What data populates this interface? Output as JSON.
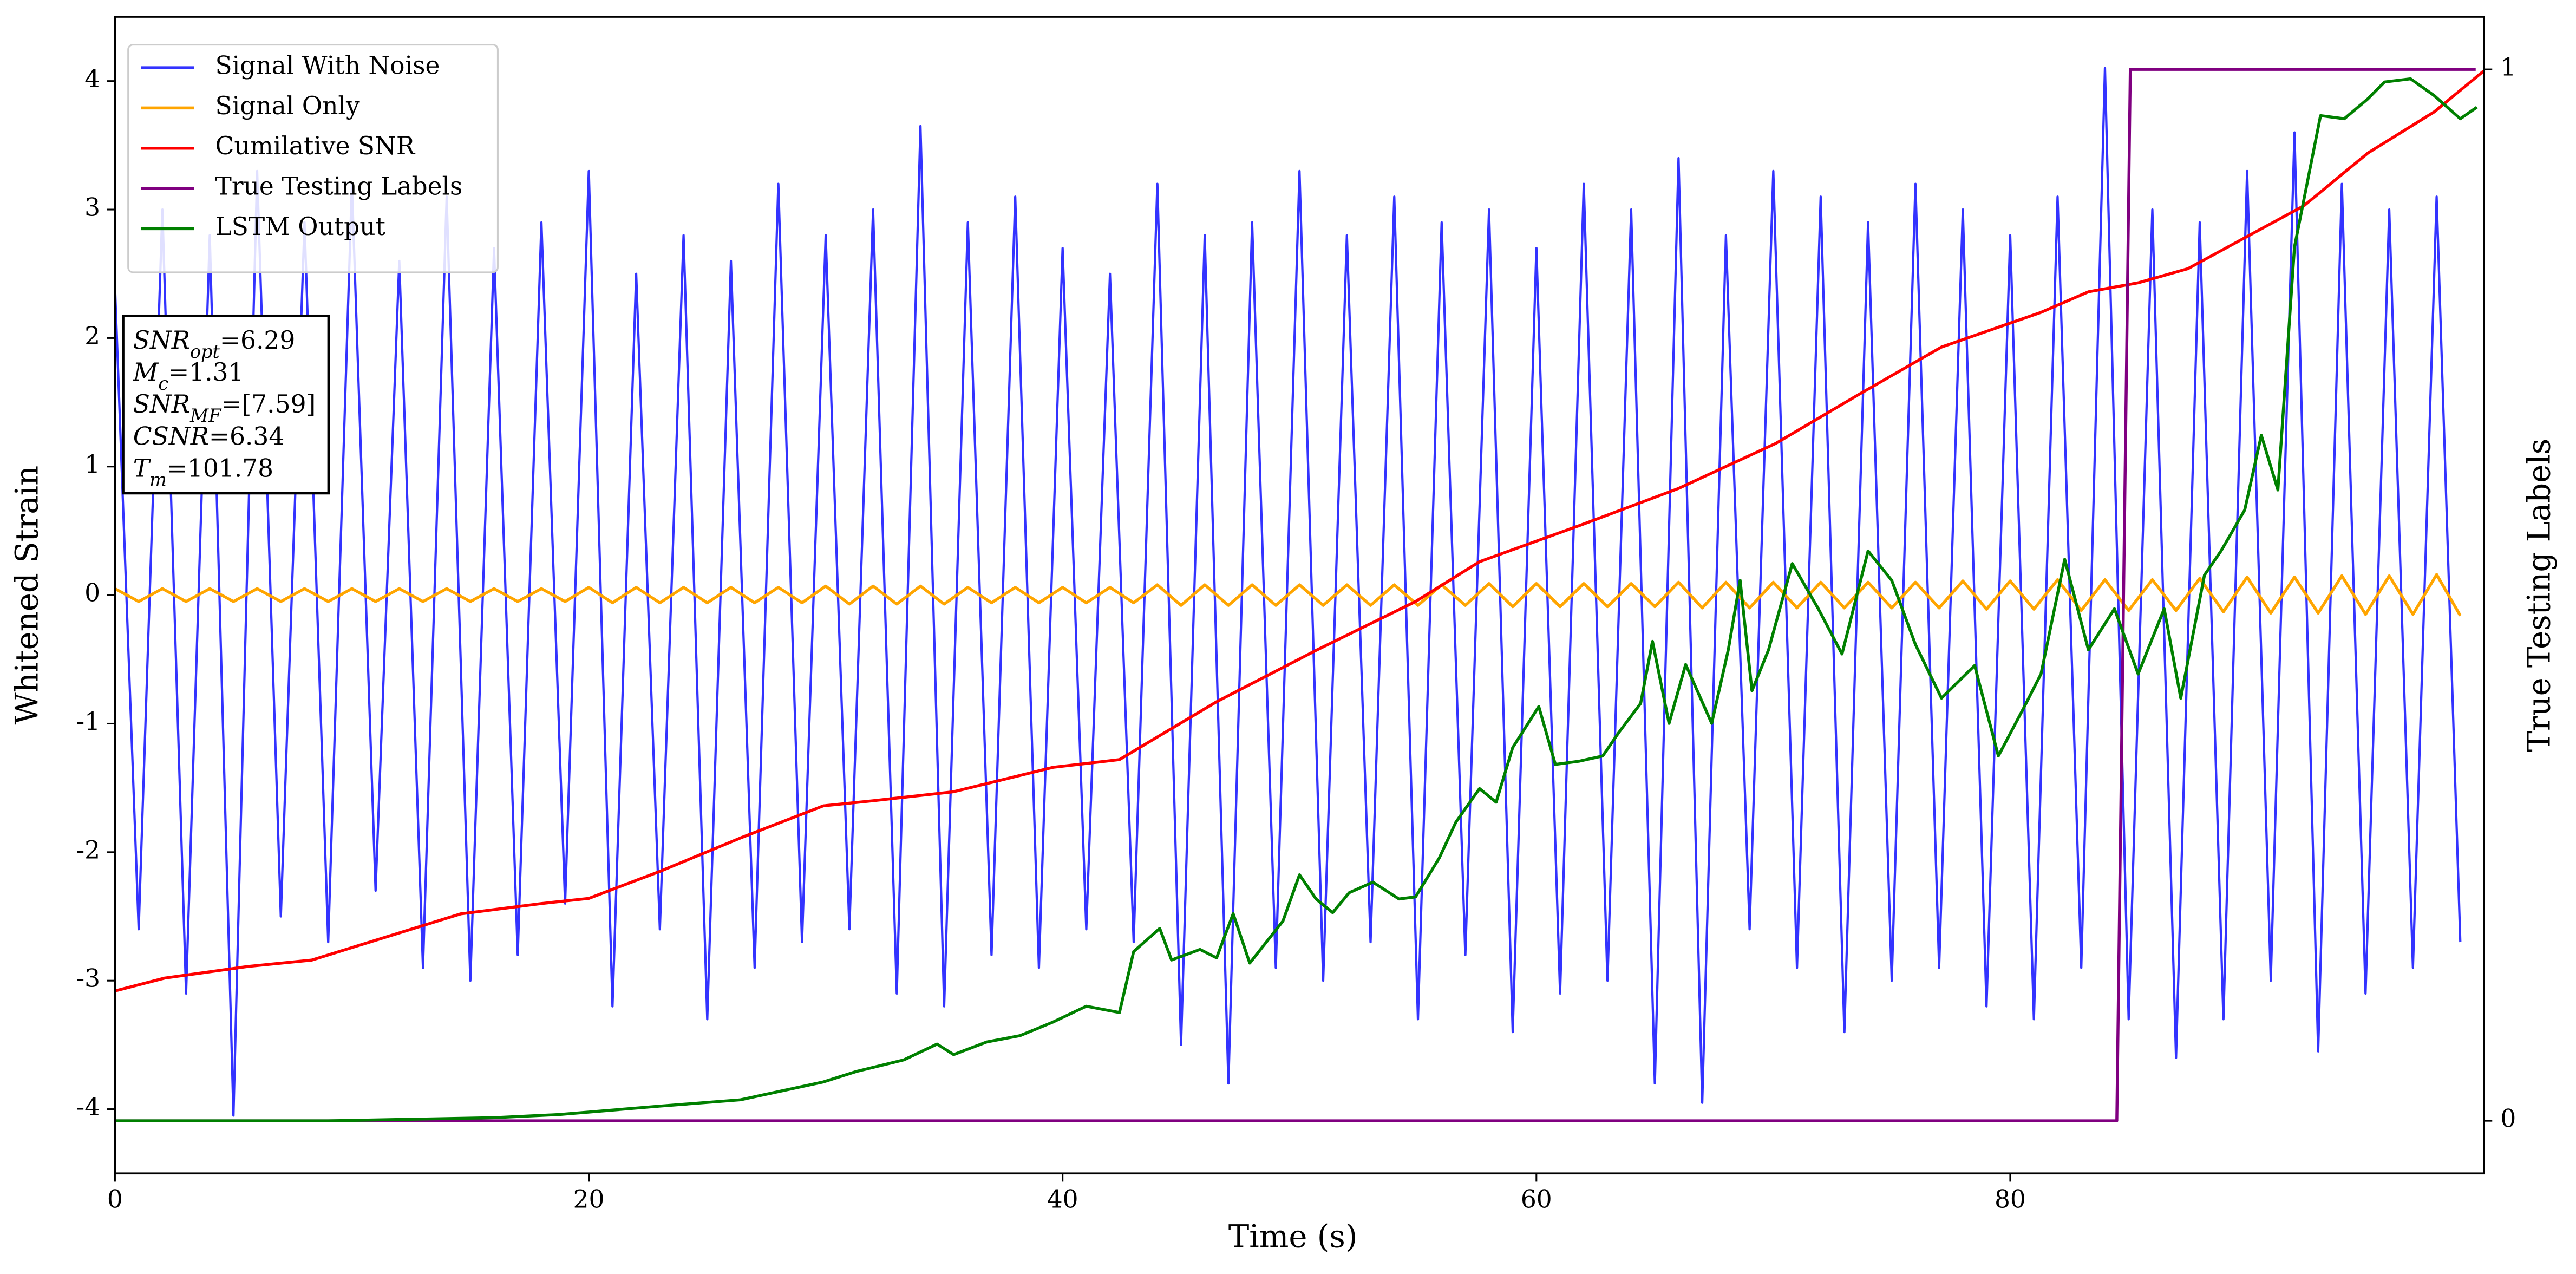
{
  "chart_data": {
    "type": "line",
    "xlabel": "Time (s)",
    "ylabel": "Whitened Strain",
    "y2label": "True Testing Labels",
    "xlim": [
      0,
      100
    ],
    "ylim": [
      -4.5,
      4.5
    ],
    "y2lim": [
      -0.05,
      1.05
    ],
    "xticks": [
      0,
      20,
      40,
      60,
      80
    ],
    "yticks": [
      -4,
      -3,
      -2,
      -1,
      0,
      1,
      2,
      3,
      4
    ],
    "y2ticks": [
      0,
      1
    ],
    "legend": "upper-left",
    "grid": false,
    "series": [
      {
        "name": "Signal With Noise",
        "color": "#3333ff",
        "axis": "y",
        "x": [
          0,
          1,
          2,
          3,
          4,
          5,
          6,
          7,
          8,
          9,
          10,
          11,
          12,
          13,
          14,
          15,
          16,
          17,
          18,
          19,
          20,
          21,
          22,
          23,
          24,
          25,
          26,
          27,
          28,
          29,
          30,
          31,
          32,
          33,
          34,
          35,
          36,
          37,
          38,
          39,
          40,
          41,
          42,
          43,
          44,
          45,
          46,
          47,
          48,
          49,
          50,
          51,
          52,
          53,
          54,
          55,
          56,
          57,
          58,
          59,
          60,
          61,
          62,
          63,
          64,
          65,
          66,
          67,
          68,
          69,
          70,
          71,
          72,
          73,
          74,
          75,
          76,
          77,
          78,
          79,
          80,
          81,
          82,
          83,
          84,
          85,
          86,
          87,
          88,
          89,
          90,
          91,
          92,
          93,
          94,
          95,
          96,
          97,
          98,
          99
        ],
        "values": [
          2.4,
          -2.6,
          3.0,
          -3.1,
          2.8,
          -4.05,
          3.3,
          -2.5,
          2.9,
          -2.7,
          3.2,
          -2.3,
          2.6,
          -2.9,
          3.1,
          -3.0,
          2.7,
          -2.8,
          2.9,
          -2.4,
          3.3,
          -3.2,
          2.5,
          -2.6,
          2.8,
          -3.3,
          2.6,
          -2.9,
          3.2,
          -2.7,
          2.8,
          -2.6,
          3.0,
          -3.1,
          3.65,
          -3.2,
          2.9,
          -2.8,
          3.1,
          -2.9,
          2.7,
          -2.6,
          2.5,
          -2.7,
          3.2,
          -3.5,
          2.8,
          -3.8,
          2.9,
          -2.9,
          3.3,
          -3.0,
          2.8,
          -2.7,
          3.1,
          -3.3,
          2.9,
          -2.8,
          3.0,
          -3.4,
          2.7,
          -3.1,
          3.2,
          -3.0,
          3.0,
          -3.8,
          3.4,
          -3.95,
          2.8,
          -2.6,
          3.3,
          -2.9,
          3.1,
          -3.4,
          2.9,
          -3.0,
          3.2,
          -2.9,
          3.0,
          -3.2,
          2.8,
          -3.3,
          3.1,
          -2.9,
          4.1,
          -3.3,
          3.0,
          -3.6,
          2.9,
          -3.3,
          3.3,
          -3.0,
          3.6,
          -3.55,
          3.2,
          -3.1,
          3.0,
          -2.9,
          3.1,
          -2.7
        ]
      },
      {
        "name": "Signal Only",
        "color": "#ffa500",
        "axis": "y",
        "x": [
          0,
          1,
          2,
          3,
          4,
          5,
          6,
          7,
          8,
          9,
          10,
          11,
          12,
          13,
          14,
          15,
          16,
          17,
          18,
          19,
          20,
          21,
          22,
          23,
          24,
          25,
          26,
          27,
          28,
          29,
          30,
          31,
          32,
          33,
          34,
          35,
          36,
          37,
          38,
          39,
          40,
          41,
          42,
          43,
          44,
          45,
          46,
          47,
          48,
          49,
          50,
          51,
          52,
          53,
          54,
          55,
          56,
          57,
          58,
          59,
          60,
          61,
          62,
          63,
          64,
          65,
          66,
          67,
          68,
          69,
          70,
          71,
          72,
          73,
          74,
          75,
          76,
          77,
          78,
          79,
          80,
          81,
          82,
          83,
          84,
          85,
          86,
          87,
          88,
          89,
          90,
          91,
          92,
          93,
          94,
          95,
          96,
          97,
          98,
          99
        ],
        "values": [
          0.05,
          -0.05,
          0.05,
          -0.05,
          0.05,
          -0.05,
          0.05,
          -0.05,
          0.05,
          -0.05,
          0.05,
          -0.05,
          0.05,
          -0.05,
          0.05,
          -0.05,
          0.05,
          -0.05,
          0.05,
          -0.05,
          0.06,
          -0.06,
          0.06,
          -0.06,
          0.06,
          -0.06,
          0.06,
          -0.06,
          0.06,
          -0.06,
          0.07,
          -0.07,
          0.07,
          -0.07,
          0.07,
          -0.07,
          0.06,
          -0.06,
          0.06,
          -0.06,
          0.06,
          -0.06,
          0.06,
          -0.06,
          0.08,
          -0.08,
          0.08,
          -0.08,
          0.08,
          -0.08,
          0.08,
          -0.08,
          0.08,
          -0.08,
          0.08,
          -0.08,
          0.08,
          -0.08,
          0.09,
          -0.09,
          0.09,
          -0.09,
          0.09,
          -0.09,
          0.09,
          -0.09,
          0.1,
          -0.1,
          0.1,
          -0.1,
          0.1,
          -0.1,
          0.1,
          -0.1,
          0.1,
          -0.1,
          0.1,
          -0.1,
          0.11,
          -0.11,
          0.11,
          -0.11,
          0.12,
          -0.12,
          0.12,
          -0.12,
          0.12,
          -0.12,
          0.13,
          -0.13,
          0.14,
          -0.14,
          0.14,
          -0.14,
          0.15,
          -0.15,
          0.15,
          -0.15,
          0.16,
          -0.16
        ]
      },
      {
        "name": "Cumilative SNR",
        "color": "#ff0000",
        "axis": "y",
        "x": [
          0,
          2.1,
          5.6,
          8.3,
          11.1,
          14.6,
          18,
          20,
          23,
          26.4,
          29.9,
          32,
          35.4,
          39.6,
          42.4,
          46.5,
          50.7,
          54.9,
          57.6,
          61.8,
          66,
          70.1,
          73.6,
          77.1,
          81.3,
          83.3,
          85.4,
          87.5,
          89.6,
          92.4,
          95.1,
          97.9,
          100
        ],
        "values": [
          -3.08,
          -2.98,
          -2.89,
          -2.84,
          -2.68,
          -2.48,
          -2.4,
          -2.36,
          -2.15,
          -1.89,
          -1.64,
          -1.6,
          -1.53,
          -1.34,
          -1.28,
          -0.83,
          -0.43,
          -0.05,
          0.26,
          0.54,
          0.83,
          1.18,
          1.56,
          1.93,
          2.2,
          2.36,
          2.43,
          2.54,
          2.75,
          3.03,
          3.44,
          3.76,
          4.08
        ]
      },
      {
        "name": "True Testing Labels",
        "color": "#800080",
        "axis": "y2",
        "x": [
          0,
          84.5,
          85.07,
          99.65
        ],
        "values": [
          0,
          0,
          1,
          1
        ]
      },
      {
        "name": "LSTM Output",
        "color": "#008000",
        "axis": "y2",
        "x": [
          0,
          9,
          16,
          18.75,
          23,
          26.4,
          29.9,
          31.3,
          33.3,
          34.7,
          35.4,
          36.8,
          38.2,
          39.6,
          41,
          42.4,
          43,
          44.1,
          44.6,
          45.8,
          46.5,
          47.2,
          47.9,
          49.3,
          50,
          50.7,
          51.4,
          52.1,
          53.1,
          54.2,
          54.9,
          55.9,
          56.6,
          57.6,
          58.3,
          59,
          60.1,
          60.8,
          61.8,
          62.8,
          63.5,
          64.4,
          64.9,
          65.6,
          66.3,
          67.4,
          68.1,
          68.6,
          69.1,
          69.8,
          70.8,
          71.9,
          72.9,
          74,
          75,
          76,
          77.1,
          78.5,
          79.5,
          80.6,
          81.3,
          82.3,
          83.3,
          84.4,
          85.4,
          86.5,
          87.2,
          88.2,
          88.9,
          89.9,
          90.6,
          91.3,
          92,
          93.1,
          94.1,
          95.1,
          95.8,
          96.9,
          97.9,
          99,
          99.7
        ],
        "values": [
          0,
          0,
          0.003,
          0.006,
          0.014,
          0.02,
          0.037,
          0.047,
          0.058,
          0.073,
          0.063,
          0.075,
          0.081,
          0.094,
          0.109,
          0.103,
          0.161,
          0.183,
          0.153,
          0.163,
          0.155,
          0.197,
          0.15,
          0.19,
          0.234,
          0.211,
          0.198,
          0.217,
          0.227,
          0.211,
          0.213,
          0.25,
          0.284,
          0.316,
          0.303,
          0.355,
          0.394,
          0.339,
          0.342,
          0.347,
          0.37,
          0.397,
          0.456,
          0.378,
          0.434,
          0.378,
          0.448,
          0.514,
          0.409,
          0.448,
          0.53,
          0.487,
          0.444,
          0.542,
          0.514,
          0.453,
          0.402,
          0.433,
          0.347,
          0.394,
          0.425,
          0.534,
          0.448,
          0.487,
          0.425,
          0.487,
          0.402,
          0.519,
          0.542,
          0.581,
          0.652,
          0.6,
          0.831,
          0.956,
          0.953,
          0.972,
          0.988,
          0.991,
          0.975,
          0.953,
          0.964
        ]
      }
    ],
    "annotations": [
      {
        "main": "SNR",
        "sub": "opt",
        "text": "=6.29"
      },
      {
        "main": "M",
        "sub": "c",
        "text": "=1.31"
      },
      {
        "main": "SNR",
        "sub": "MF",
        "text": "=[7.59]"
      },
      {
        "main": "CSNR",
        "text": "=6.34"
      },
      {
        "main": "T",
        "sub": "m",
        "text": "=101.78"
      }
    ]
  }
}
